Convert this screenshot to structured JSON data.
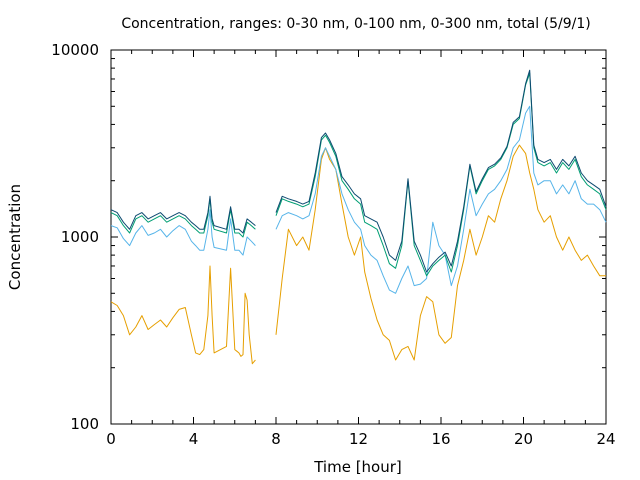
{
  "chart_data": {
    "type": "line",
    "title": "Concentration, ranges: 0-30 nm, 0-100 nm, 0-300 nm, total (5/9/1)",
    "xlabel": "Time [hour]",
    "ylabel": "Concentration",
    "x_range": [
      0,
      24
    ],
    "y_range": [
      100,
      10000
    ],
    "y_scale": "log",
    "x_ticks": [
      "0",
      "4",
      "8",
      "12",
      "16",
      "20",
      "24"
    ],
    "y_ticks": [
      "100",
      "1000",
      "10000"
    ],
    "grid": false,
    "legend": "none",
    "series": [
      {
        "color": "#E69F00",
        "x": [
          0,
          0.3,
          0.6,
          0.9,
          1.2,
          1.5,
          1.8,
          2.1,
          2.4,
          2.7,
          3.0,
          3.3,
          3.6,
          3.9,
          4.1,
          4.3,
          4.5,
          4.7,
          4.8,
          4.9,
          5.0,
          5.6,
          5.8,
          6.0,
          6.1,
          6.2,
          6.3,
          6.4,
          6.5,
          6.6,
          6.7,
          6.85,
          7.0,
          8.0,
          8.3,
          8.6,
          9.0,
          9.3,
          9.6,
          9.9,
          10.2,
          10.4,
          10.6,
          10.9,
          11.2,
          11.5,
          11.8,
          12.1,
          12.3,
          12.6,
          12.9,
          13.2,
          13.5,
          13.8,
          14.1,
          14.4,
          14.7,
          15.0,
          15.3,
          15.6,
          15.9,
          16.2,
          16.5,
          16.8,
          17.1,
          17.4,
          17.7,
          18.0,
          18.3,
          18.6,
          18.9,
          19.2,
          19.5,
          19.8,
          20.1,
          20.3,
          20.5,
          20.7,
          21.0,
          21.3,
          21.6,
          21.9,
          22.2,
          22.5,
          22.8,
          23.1,
          23.4,
          23.7,
          24.0
        ],
        "y": [
          450,
          430,
          380,
          300,
          330,
          380,
          320,
          340,
          360,
          330,
          370,
          410,
          420,
          300,
          240,
          235,
          250,
          380,
          700,
          380,
          240,
          260,
          680,
          250,
          245,
          240,
          230,
          235,
          500,
          460,
          300,
          210,
          220,
          300,
          600,
          1100,
          900,
          1000,
          850,
          1400,
          2600,
          3000,
          2600,
          2300,
          1500,
          1000,
          800,
          1000,
          650,
          470,
          360,
          300,
          280,
          220,
          250,
          260,
          220,
          380,
          480,
          450,
          300,
          270,
          290,
          550,
          750,
          1100,
          800,
          1000,
          1300,
          1200,
          1600,
          2000,
          2700,
          3100,
          2800,
          2200,
          1800,
          1400,
          1200,
          1300,
          1000,
          850,
          1000,
          850,
          750,
          800,
          700,
          620,
          620
        ]
      },
      {
        "color": "#56B4E9",
        "x": [
          0,
          0.3,
          0.6,
          0.9,
          1.2,
          1.5,
          1.8,
          2.1,
          2.4,
          2.7,
          3.0,
          3.3,
          3.6,
          3.9,
          4.1,
          4.3,
          4.5,
          4.7,
          4.8,
          4.9,
          5.0,
          5.6,
          5.8,
          6.0,
          6.2,
          6.4,
          6.6,
          6.8,
          7.0,
          8.0,
          8.3,
          8.6,
          9.0,
          9.3,
          9.6,
          9.9,
          10.2,
          10.4,
          10.6,
          10.9,
          11.2,
          11.5,
          11.8,
          12.1,
          12.3,
          12.6,
          12.9,
          13.2,
          13.5,
          13.8,
          14.1,
          14.4,
          14.7,
          15.0,
          15.3,
          15.6,
          15.9,
          16.2,
          16.5,
          16.8,
          17.1,
          17.4,
          17.7,
          18.0,
          18.3,
          18.6,
          18.9,
          19.2,
          19.5,
          19.8,
          20.1,
          20.3,
          20.5,
          20.7,
          21.0,
          21.3,
          21.6,
          21.9,
          22.2,
          22.5,
          22.8,
          23.1,
          23.4,
          23.7,
          24.0
        ],
        "y": [
          1150,
          1120,
          980,
          900,
          1050,
          1150,
          1020,
          1050,
          1100,
          1000,
          1080,
          1150,
          1100,
          950,
          900,
          850,
          850,
          1100,
          1400,
          1000,
          880,
          850,
          1250,
          850,
          850,
          800,
          1000,
          950,
          900,
          1100,
          1300,
          1350,
          1300,
          1250,
          1300,
          1700,
          2700,
          3000,
          2700,
          2300,
          1700,
          1400,
          1200,
          1100,
          900,
          800,
          750,
          620,
          520,
          500,
          600,
          700,
          550,
          560,
          600,
          1200,
          900,
          800,
          550,
          700,
          1100,
          1800,
          1300,
          1500,
          1700,
          1800,
          2000,
          2300,
          3000,
          3300,
          4600,
          5000,
          2200,
          1900,
          2000,
          2000,
          1700,
          1900,
          1700,
          2000,
          1600,
          1500,
          1500,
          1400,
          1200
        ]
      },
      {
        "color": "#009E73",
        "x": [
          0,
          0.3,
          0.6,
          0.9,
          1.2,
          1.5,
          1.8,
          2.1,
          2.4,
          2.7,
          3.0,
          3.3,
          3.6,
          3.9,
          4.1,
          4.3,
          4.5,
          4.7,
          4.8,
          4.9,
          5.0,
          5.6,
          5.8,
          6.0,
          6.2,
          6.4,
          6.6,
          6.8,
          7.0,
          8.0,
          8.3,
          8.6,
          9.0,
          9.3,
          9.6,
          9.9,
          10.2,
          10.4,
          10.6,
          10.9,
          11.2,
          11.5,
          11.8,
          12.1,
          12.3,
          12.6,
          12.9,
          13.2,
          13.5,
          13.8,
          14.1,
          14.4,
          14.7,
          15.0,
          15.3,
          15.6,
          15.9,
          16.2,
          16.5,
          16.8,
          17.1,
          17.4,
          17.7,
          18.0,
          18.3,
          18.6,
          18.9,
          19.2,
          19.5,
          19.8,
          20.1,
          20.3,
          20.5,
          20.7,
          21.0,
          21.3,
          21.6,
          21.9,
          22.2,
          22.5,
          22.8,
          23.1,
          23.4,
          23.7,
          24.0
        ],
        "y": [
          1350,
          1300,
          1150,
          1050,
          1250,
          1300,
          1200,
          1250,
          1300,
          1200,
          1250,
          1300,
          1250,
          1150,
          1100,
          1050,
          1050,
          1300,
          1600,
          1200,
          1100,
          1050,
          1400,
          1050,
          1050,
          1000,
          1200,
          1150,
          1100,
          1300,
          1600,
          1550,
          1500,
          1450,
          1500,
          2100,
          3300,
          3500,
          3200,
          2700,
          2000,
          1800,
          1600,
          1500,
          1200,
          1150,
          1100,
          900,
          720,
          680,
          900,
          2000,
          900,
          750,
          620,
          700,
          750,
          800,
          650,
          900,
          1400,
          2400,
          1700,
          2000,
          2300,
          2400,
          2600,
          3000,
          4000,
          4300,
          6500,
          7500,
          3000,
          2500,
          2400,
          2500,
          2200,
          2500,
          2300,
          2600,
          2100,
          1900,
          1800,
          1700,
          1400
        ]
      },
      {
        "color": "#0D4A70",
        "x": [
          0,
          0.3,
          0.6,
          0.9,
          1.2,
          1.5,
          1.8,
          2.1,
          2.4,
          2.7,
          3.0,
          3.3,
          3.6,
          3.9,
          4.1,
          4.3,
          4.5,
          4.7,
          4.8,
          4.9,
          5.0,
          5.6,
          5.8,
          6.0,
          6.2,
          6.4,
          6.6,
          6.8,
          7.0,
          8.0,
          8.3,
          8.6,
          9.0,
          9.3,
          9.6,
          9.9,
          10.2,
          10.4,
          10.6,
          10.9,
          11.2,
          11.5,
          11.8,
          12.1,
          12.3,
          12.6,
          12.9,
          13.2,
          13.5,
          13.8,
          14.1,
          14.4,
          14.7,
          15.0,
          15.3,
          15.6,
          15.9,
          16.2,
          16.5,
          16.8,
          17.1,
          17.4,
          17.7,
          18.0,
          18.3,
          18.6,
          18.9,
          19.2,
          19.5,
          19.8,
          20.1,
          20.3,
          20.5,
          20.7,
          21.0,
          21.3,
          21.6,
          21.9,
          22.2,
          22.5,
          22.8,
          23.1,
          23.4,
          23.7,
          24.0
        ],
        "y": [
          1400,
          1350,
          1200,
          1100,
          1300,
          1350,
          1250,
          1300,
          1350,
          1250,
          1300,
          1350,
          1300,
          1200,
          1150,
          1100,
          1100,
          1350,
          1650,
          1250,
          1150,
          1100,
          1450,
          1100,
          1100,
          1050,
          1250,
          1200,
          1150,
          1350,
          1650,
          1600,
          1550,
          1500,
          1550,
          2200,
          3400,
          3600,
          3300,
          2800,
          2100,
          1900,
          1700,
          1600,
          1300,
          1250,
          1200,
          1000,
          800,
          750,
          950,
          2050,
          950,
          800,
          650,
          720,
          780,
          830,
          700,
          950,
          1450,
          2450,
          1750,
          2050,
          2350,
          2450,
          2650,
          3050,
          4100,
          4400,
          6600,
          7800,
          3100,
          2600,
          2500,
          2600,
          2300,
          2600,
          2400,
          2700,
          2200,
          2000,
          1900,
          1800,
          1450
        ]
      }
    ]
  }
}
